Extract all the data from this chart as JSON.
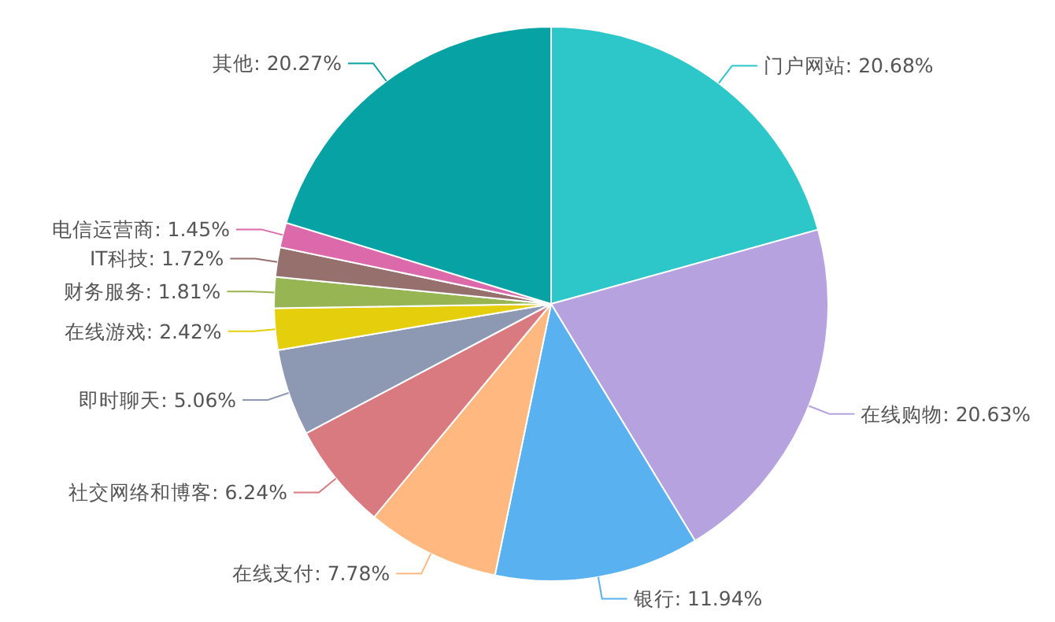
{
  "chart_data": {
    "type": "pie",
    "categories": [
      "门户网站",
      "在线购物",
      "银行",
      "在线支付",
      "社交网络和博客",
      "即时聊天",
      "在线游戏",
      "财务服务",
      "IT科技",
      "电信运营商",
      "其他"
    ],
    "values": [
      20.68,
      20.63,
      11.94,
      7.78,
      6.24,
      5.06,
      2.42,
      1.81,
      1.72,
      1.45,
      20.27
    ],
    "value_labels": [
      "20.68%",
      "20.63%",
      "11.94%",
      "7.78%",
      "6.24%",
      "5.06%",
      "2.42%",
      "1.81%",
      "1.72%",
      "1.45%",
      "20.27%"
    ],
    "colors": [
      "#2ec7c9",
      "#b6a2de",
      "#5ab1ef",
      "#ffb980",
      "#d87a80",
      "#8d98b3",
      "#e5cf0d",
      "#97b552",
      "#95706d",
      "#dc69aa",
      "#07a2a4"
    ]
  }
}
